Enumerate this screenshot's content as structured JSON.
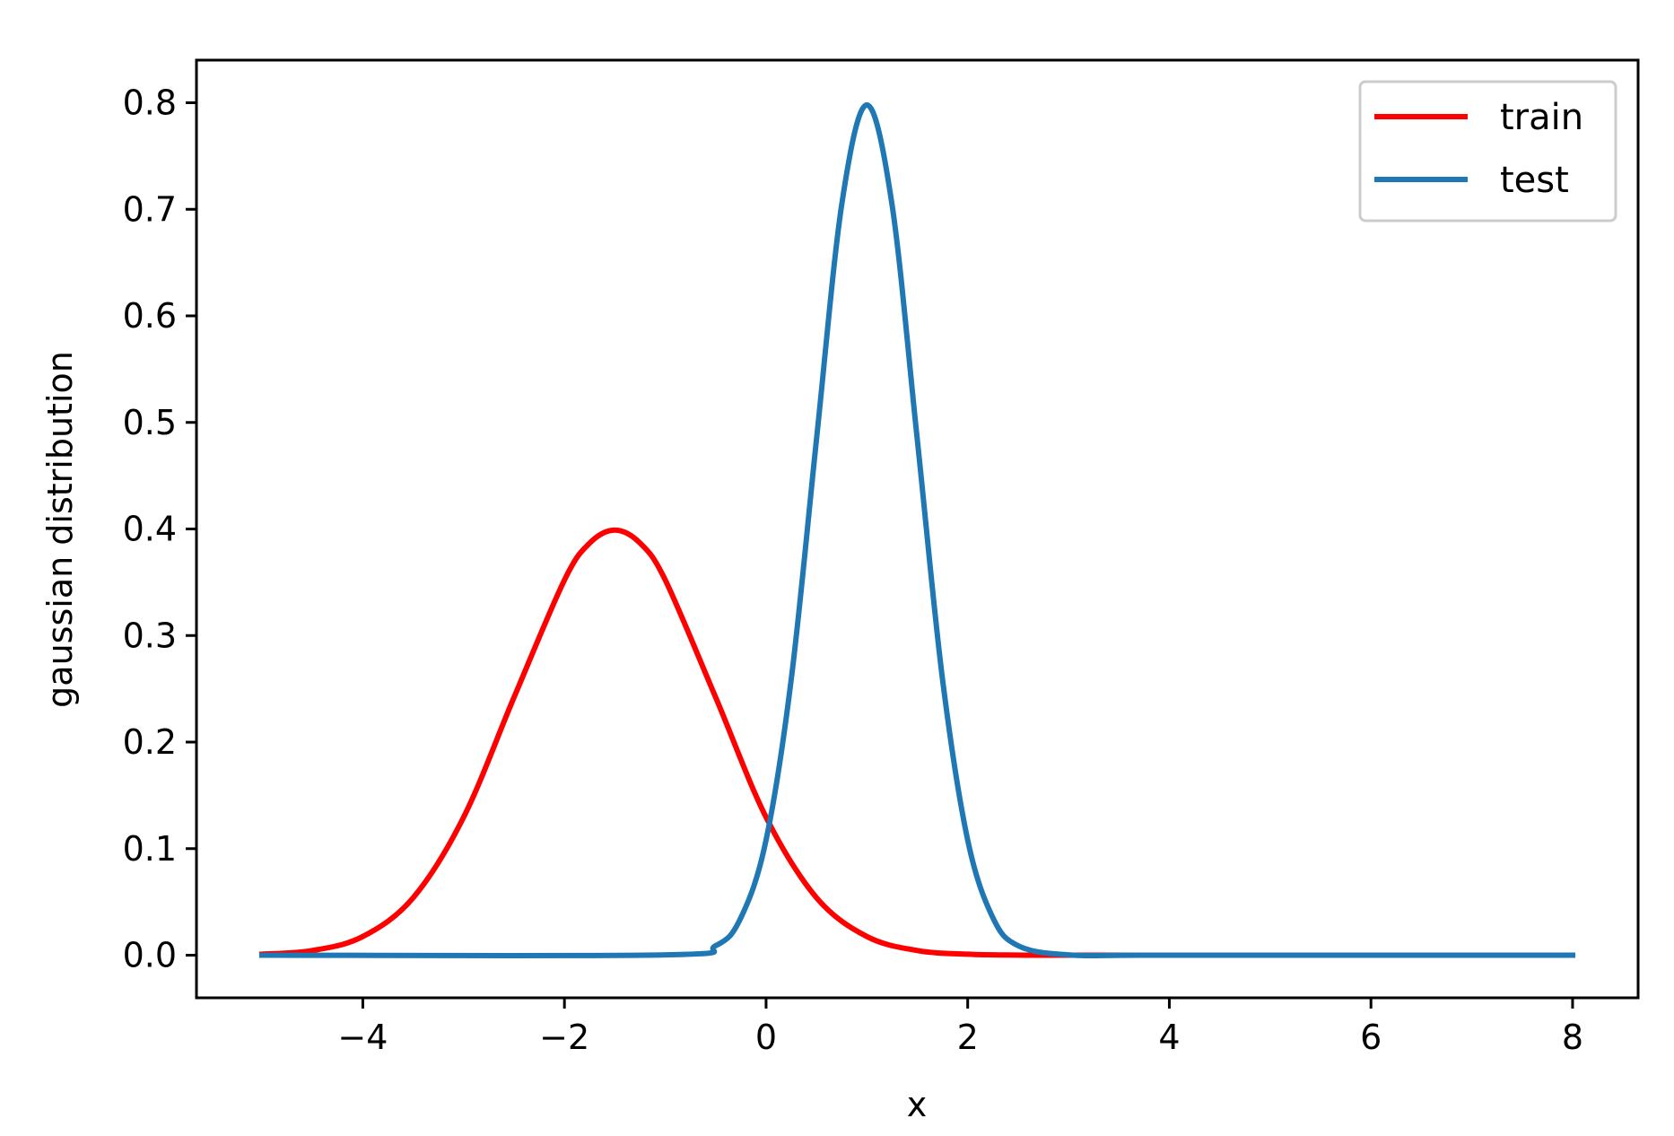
{
  "chart_data": {
    "type": "line",
    "title": "",
    "xlabel": "x",
    "ylabel": "gaussian distribution",
    "xlim": [
      -5.65,
      8.65
    ],
    "ylim": [
      -0.04,
      0.84
    ],
    "x_ticks": [
      -4,
      -2,
      0,
      2,
      4,
      6,
      8
    ],
    "x_tick_labels": [
      "−4",
      "−2",
      "0",
      "2",
      "4",
      "6",
      "8"
    ],
    "y_ticks": [
      0.0,
      0.1,
      0.2,
      0.3,
      0.4,
      0.5,
      0.6,
      0.7,
      0.8
    ],
    "y_tick_labels": [
      "0.0",
      "0.1",
      "0.2",
      "0.3",
      "0.4",
      "0.5",
      "0.6",
      "0.7",
      "0.8"
    ],
    "grid": false,
    "legend_position": "top-right",
    "series": [
      {
        "name": "train",
        "color": "#ff0000",
        "x": [
          -5.0,
          -4.5,
          -4.0,
          -3.5,
          -3.0,
          -2.5,
          -2.0,
          -1.75,
          -1.5,
          -1.25,
          -1.0,
          -0.5,
          0.0,
          0.5,
          1.0,
          1.5,
          2.0,
          2.5,
          3.0,
          4.0,
          5.0,
          6.0,
          7.0,
          8.0
        ],
        "y": [
          0.0009,
          0.0044,
          0.0175,
          0.054,
          0.1295,
          0.242,
          0.3521,
          0.3867,
          0.3989,
          0.3867,
          0.3521,
          0.242,
          0.1295,
          0.054,
          0.0175,
          0.0044,
          0.0009,
          0.0001,
          0.0,
          0.0,
          0.0,
          0.0,
          0.0,
          0.0
        ]
      },
      {
        "name": "test",
        "color": "#1f77b4",
        "x": [
          -5.0,
          -1.0,
          -0.5,
          -0.25,
          0.0,
          0.25,
          0.5,
          0.75,
          1.0,
          1.25,
          1.5,
          1.75,
          2.0,
          2.25,
          2.5,
          3.0,
          4.0,
          8.0
        ],
        "y": [
          0.0,
          0.0003,
          0.0089,
          0.0351,
          0.108,
          0.259,
          0.4839,
          0.7041,
          0.7979,
          0.7041,
          0.4839,
          0.259,
          0.108,
          0.0351,
          0.0089,
          0.0003,
          0.0,
          0.0
        ]
      }
    ]
  }
}
